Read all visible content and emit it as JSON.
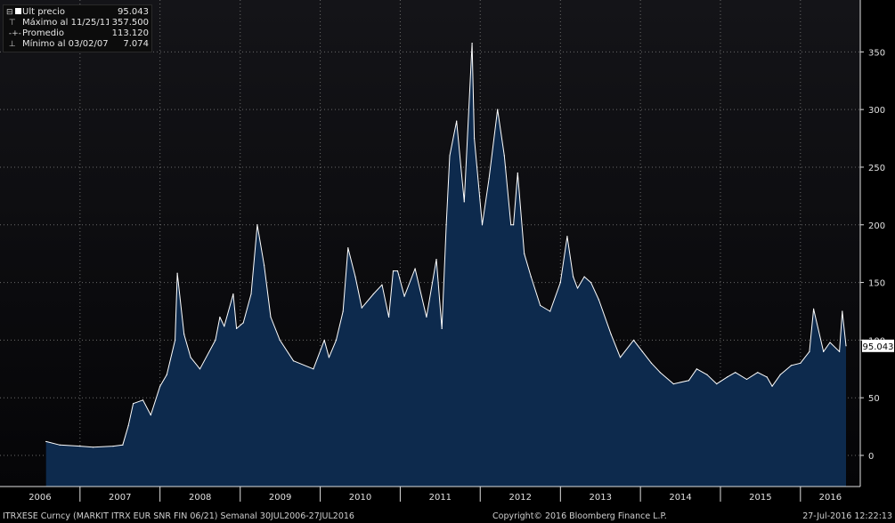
{
  "colors": {
    "background": "#000000",
    "plot_bg_top": "#141418",
    "plot_bg_bottom": "#050507",
    "area_fill": "#0d2a4d",
    "line": "#ffffff",
    "grid": "#6a6a6a",
    "axis_text": "#e0e0e0",
    "last_label_bg": "#ffffff",
    "last_label_text": "#000000"
  },
  "legend": {
    "rows": [
      {
        "icon": "collapse-square-icon",
        "label": "Últ precio",
        "value": "95.043"
      },
      {
        "icon": "max-marker-icon",
        "label": "Máximo al 11/25/11",
        "value": "357.500"
      },
      {
        "icon": "average-marker-icon",
        "label": "Promedio",
        "value": "113.120"
      },
      {
        "icon": "min-marker-icon",
        "label": "Mínimo al 03/02/07",
        "value": "7.074"
      }
    ]
  },
  "footer": {
    "left": "ITRXESE Curncy (MARKIT ITRX EUR SNR FIN 06/21)  Semanal 30JUL2006-27JUL2016",
    "center": "Copyright© 2016 Bloomberg Finance L.P.",
    "right": "27-Jul-2016 12:22:13"
  },
  "chart_data": {
    "type": "area",
    "x_axis_labels": [
      "2006",
      "2007",
      "2008",
      "2009",
      "2010",
      "2011",
      "2012",
      "2013",
      "2014",
      "2015",
      "2016"
    ],
    "y_ticks": [
      0,
      50,
      100,
      150,
      200,
      250,
      300,
      350
    ],
    "ylim": [
      -27,
      395
    ],
    "last_value_label": "95.043",
    "series": [
      {
        "x": [
          "2006-07-30",
          "2006-10-01",
          "2007-01-01",
          "2007-03-02",
          "2007-06-01",
          "2007-07-15",
          "2007-08-10",
          "2007-09-01",
          "2007-10-15",
          "2007-11-20",
          "2008-01-01",
          "2008-02-01",
          "2008-03-10",
          "2008-03-20",
          "2008-04-20",
          "2008-05-20",
          "2008-07-01",
          "2008-09-10",
          "2008-09-30",
          "2008-10-20",
          "2008-11-30",
          "2008-12-15",
          "2009-01-15",
          "2009-02-20",
          "2009-03-20",
          "2009-04-20",
          "2009-05-20",
          "2009-07-01",
          "2009-09-01",
          "2009-12-01",
          "2010-01-20",
          "2010-02-10",
          "2010-03-15",
          "2010-04-15",
          "2010-05-08",
          "2010-06-10",
          "2010-07-10",
          "2010-09-01",
          "2010-10-10",
          "2010-11-10",
          "2010-11-30",
          "2010-12-20",
          "2011-01-20",
          "2011-03-10",
          "2011-05-01",
          "2011-06-15",
          "2011-07-10",
          "2011-07-30",
          "2011-08-15",
          "2011-09-15",
          "2011-10-05",
          "2011-10-20",
          "2011-11-25",
          "2011-12-05",
          "2012-01-10",
          "2012-02-10",
          "2012-03-20",
          "2012-04-20",
          "2012-05-20",
          "2012-06-01",
          "2012-06-20",
          "2012-07-20",
          "2012-08-20",
          "2012-10-01",
          "2012-11-15",
          "2013-01-01",
          "2013-02-01",
          "2013-02-28",
          "2013-03-20",
          "2013-04-20",
          "2013-05-20",
          "2013-06-25",
          "2013-08-20",
          "2013-10-01",
          "2013-12-01",
          "2014-01-10",
          "2014-02-20",
          "2014-04-01",
          "2014-06-01",
          "2014-08-10",
          "2014-09-15",
          "2014-11-01",
          "2014-12-15",
          "2015-02-01",
          "2015-03-10",
          "2015-05-01",
          "2015-06-20",
          "2015-08-01",
          "2015-08-25",
          "2015-10-01",
          "2015-11-20",
          "2016-01-01",
          "2016-02-11",
          "2016-03-01",
          "2016-04-15",
          "2016-05-15",
          "2016-06-27",
          "2016-07-10",
          "2016-07-27"
        ],
        "y": [
          12,
          9,
          8,
          7.1,
          8,
          9,
          26,
          45,
          48,
          35,
          60,
          70,
          100,
          158,
          105,
          85,
          75,
          100,
          120,
          112,
          140,
          110,
          115,
          140,
          200,
          165,
          120,
          100,
          82,
          75,
          100,
          85,
          100,
          125,
          180,
          155,
          128,
          140,
          148,
          120,
          160,
          160,
          138,
          162,
          120,
          170,
          110,
          200,
          260,
          290,
          250,
          220,
          357.5,
          275,
          200,
          240,
          300,
          260,
          200,
          200,
          245,
          175,
          155,
          130,
          125,
          150,
          190,
          155,
          145,
          155,
          150,
          135,
          105,
          85,
          100,
          90,
          80,
          72,
          62,
          65,
          75,
          70,
          62,
          68,
          72,
          66,
          72,
          68,
          60,
          70,
          78,
          80,
          90,
          127,
          90,
          98,
          90,
          125,
          95.043
        ]
      }
    ]
  }
}
